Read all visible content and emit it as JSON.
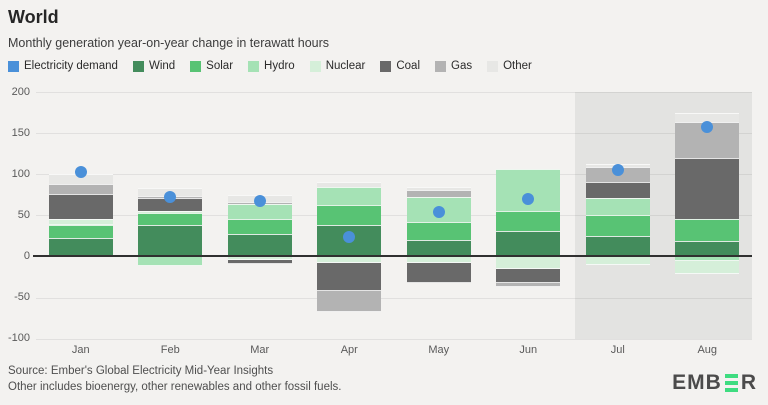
{
  "header": {
    "title": "World",
    "subtitle": "Monthly generation year-on-year change in terawatt hours"
  },
  "legend": [
    {
      "key": "electricity-demand",
      "label": "Electricity demand",
      "color": "#4a90d9"
    },
    {
      "key": "wind",
      "label": "Wind",
      "color": "#438c5c"
    },
    {
      "key": "solar",
      "label": "Solar",
      "color": "#58c374"
    },
    {
      "key": "hydro",
      "label": "Hydro",
      "color": "#a5e2b5"
    },
    {
      "key": "nuclear",
      "label": "Nuclear",
      "color": "#d5efd9"
    },
    {
      "key": "coal",
      "label": "Coal",
      "color": "#696969"
    },
    {
      "key": "gas",
      "label": "Gas",
      "color": "#b3b3b3"
    },
    {
      "key": "other",
      "label": "Other",
      "color": "#e7e7e5"
    }
  ],
  "chart_data": {
    "type": "bar",
    "stacked": true,
    "title": "World",
    "subtitle": "Monthly generation year-on-year change in terawatt hours",
    "unit": "terawatt hours",
    "categories": [
      "Jan",
      "Feb",
      "Mar",
      "Apr",
      "May",
      "Jun",
      "Jul",
      "Aug"
    ],
    "y_ticks": [
      200,
      150,
      100,
      50,
      0,
      -50,
      -100
    ],
    "ylim": [
      -100,
      200
    ],
    "grid": true,
    "forecast_shaded_months": [
      "Jul",
      "Aug"
    ],
    "series": [
      {
        "name": "Wind",
        "color": "#438c5c",
        "values": [
          23,
          38,
          27,
          38,
          20,
          31,
          25,
          19
        ]
      },
      {
        "name": "Solar",
        "color": "#58c374",
        "values": [
          15,
          15,
          19,
          25,
          22,
          24,
          25,
          26
        ]
      },
      {
        "name": "Hydro",
        "color": "#a5e2b5",
        "values": [
          2,
          -12,
          18,
          21,
          30,
          51,
          21,
          -5
        ]
      },
      {
        "name": "Nuclear",
        "color": "#d5efd9",
        "values": [
          6,
          2,
          -4,
          -8,
          -8,
          -15,
          -11,
          -16
        ]
      },
      {
        "name": "Coal",
        "color": "#696969",
        "values": [
          30,
          16,
          -5,
          -34,
          -24,
          -17,
          20,
          75
        ]
      },
      {
        "name": "Gas",
        "color": "#b3b3b3",
        "values": [
          12,
          3,
          2,
          -25,
          9,
          -5,
          18,
          43
        ]
      },
      {
        "name": "Other",
        "color": "#e7e7e5",
        "values": [
          12,
          9,
          9,
          6,
          3,
          0,
          4,
          11
        ]
      }
    ],
    "dot_series": {
      "name": "Electricity demand",
      "color": "#4a90d9",
      "values": [
        103,
        72,
        68,
        24,
        54,
        70,
        105,
        158
      ]
    }
  },
  "footer": {
    "source": "Source: Ember's Global Electricity Mid-Year Insights",
    "note": "Other includes bioenergy, other renewables and other fossil fuels."
  },
  "logo": {
    "text_start": "EMB",
    "text_end": "R",
    "bar_color": "#3edc80"
  }
}
